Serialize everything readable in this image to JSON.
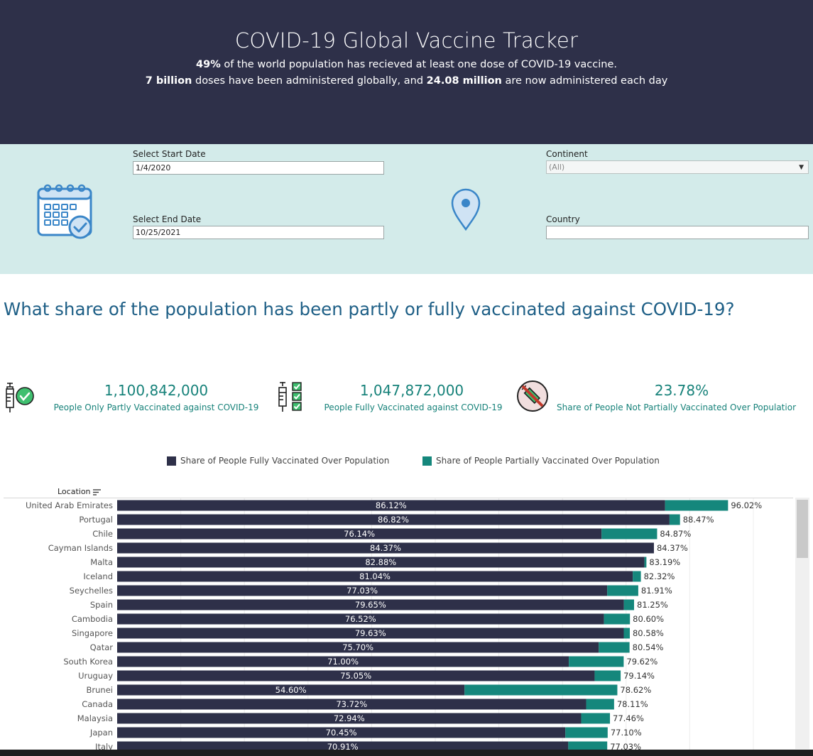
{
  "header": {
    "title": "COVID-19 Global Vaccine Tracker",
    "line1_bold": "49%",
    "line1_rest": " of the world population has recieved at least one dose of COVID-19 vaccine.",
    "line2_bold1": "7 billion",
    "line2_mid": " doses have been administered globally, and ",
    "line2_bold2": "24.08 million",
    "line2_rest": " are now administered each day"
  },
  "filters": {
    "start_label": "Select Start Date",
    "start_value": "1/4/2020",
    "end_label": "Select End Date",
    "end_value": "10/25/2021",
    "continent_label": "Continent",
    "continent_value": "(All)",
    "country_label": "Country",
    "country_value": ""
  },
  "question": "What share of the population has been partly or fully vaccinated against COVID-19?",
  "kpis": [
    {
      "value": "1,100,842,000",
      "label": "People Only Partly Vaccinated against COVID-19"
    },
    {
      "value": "1,047,872,000",
      "label": "People Fully Vaccinated against COVID-19"
    },
    {
      "value": "23.78%",
      "label": "Share of People Not Partially Vaccinated Over Populatior"
    }
  ],
  "colors": {
    "fully": "#2e3049",
    "partial": "#15877c",
    "header_bg": "#2e3049",
    "filter_bg": "#d3ebea",
    "accent_text": "#17827a",
    "question": "#1e5f86"
  },
  "chart_data": {
    "type": "bar",
    "orientation": "horizontal",
    "stacked": true,
    "location_header": "Location",
    "legend": {
      "fully": "Share of People Fully Vaccinated Over Population",
      "partial": "Share of People Partially Vaccinated Over Population"
    },
    "xlim": [
      0,
      100
    ],
    "rows": [
      {
        "location": "United Arab Emirates",
        "fully": 86.12,
        "total": 96.02,
        "fully_label": "86.12%",
        "total_label": "96.02%"
      },
      {
        "location": "Portugal",
        "fully": 86.82,
        "total": 88.47,
        "fully_label": "86.82%",
        "total_label": "88.47%"
      },
      {
        "location": "Chile",
        "fully": 76.14,
        "total": 84.87,
        "fully_label": "76.14%",
        "total_label": "84.87%"
      },
      {
        "location": "Cayman Islands",
        "fully": 84.37,
        "total": 84.37,
        "fully_label": "84.37%",
        "total_label": "84.37%"
      },
      {
        "location": "Malta",
        "fully": 82.88,
        "total": 83.19,
        "fully_label": "82.88%",
        "total_label": "83.19%"
      },
      {
        "location": "Iceland",
        "fully": 81.04,
        "total": 82.32,
        "fully_label": "81.04%",
        "total_label": "82.32%"
      },
      {
        "location": "Seychelles",
        "fully": 77.03,
        "total": 81.91,
        "fully_label": "77.03%",
        "total_label": "81.91%"
      },
      {
        "location": "Spain",
        "fully": 79.65,
        "total": 81.25,
        "fully_label": "79.65%",
        "total_label": "81.25%"
      },
      {
        "location": "Cambodia",
        "fully": 76.52,
        "total": 80.6,
        "fully_label": "76.52%",
        "total_label": "80.60%"
      },
      {
        "location": "Singapore",
        "fully": 79.63,
        "total": 80.58,
        "fully_label": "79.63%",
        "total_label": "80.58%"
      },
      {
        "location": "Qatar",
        "fully": 75.7,
        "total": 80.54,
        "fully_label": "75.70%",
        "total_label": "80.54%"
      },
      {
        "location": "South Korea",
        "fully": 71.0,
        "total": 79.62,
        "fully_label": "71.00%",
        "total_label": "79.62%"
      },
      {
        "location": "Uruguay",
        "fully": 75.05,
        "total": 79.14,
        "fully_label": "75.05%",
        "total_label": "79.14%"
      },
      {
        "location": "Brunei",
        "fully": 54.6,
        "total": 78.62,
        "fully_label": "54.60%",
        "total_label": "78.62%"
      },
      {
        "location": "Canada",
        "fully": 73.72,
        "total": 78.11,
        "fully_label": "73.72%",
        "total_label": "78.11%"
      },
      {
        "location": "Malaysia",
        "fully": 72.94,
        "total": 77.46,
        "fully_label": "72.94%",
        "total_label": "77.46%"
      },
      {
        "location": "Japan",
        "fully": 70.45,
        "total": 77.1,
        "fully_label": "70.45%",
        "total_label": "77.10%"
      },
      {
        "location": "Italy",
        "fully": 70.91,
        "total": 77.03,
        "fully_label": "70.91%",
        "total_label": "77.03%"
      }
    ]
  }
}
